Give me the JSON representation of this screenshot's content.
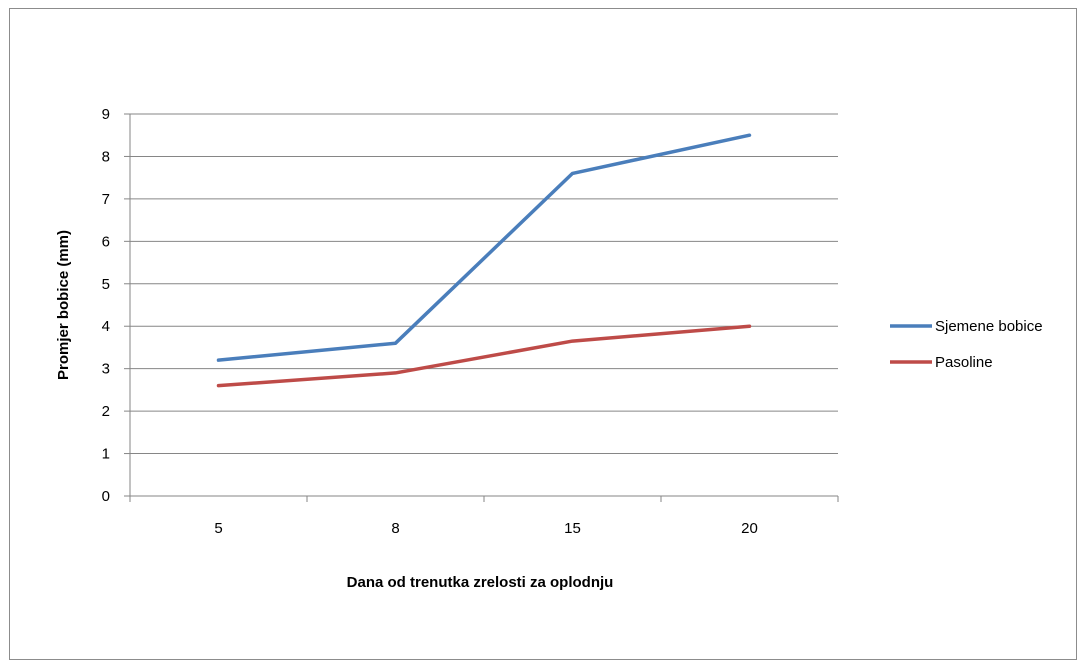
{
  "chart_data": {
    "type": "line",
    "title": "",
    "xlabel": "Dana od trenutka zrelosti za oplodnju",
    "ylabel": "Promjer bobice (mm)",
    "categories": [
      "5",
      "8",
      "15",
      "20"
    ],
    "ylim": [
      0,
      9
    ],
    "yticks": [
      "0",
      "1",
      "2",
      "3",
      "4",
      "5",
      "6",
      "7",
      "8",
      "9"
    ],
    "grid": true,
    "legend_position": "right",
    "series": [
      {
        "name": "Sjemene bobice",
        "color": "#4a7ebb",
        "values": [
          3.2,
          3.6,
          7.6,
          8.5
        ]
      },
      {
        "name": "Pasoline",
        "color": "#be4b48",
        "values": [
          2.6,
          2.9,
          3.65,
          4.0
        ]
      }
    ]
  }
}
